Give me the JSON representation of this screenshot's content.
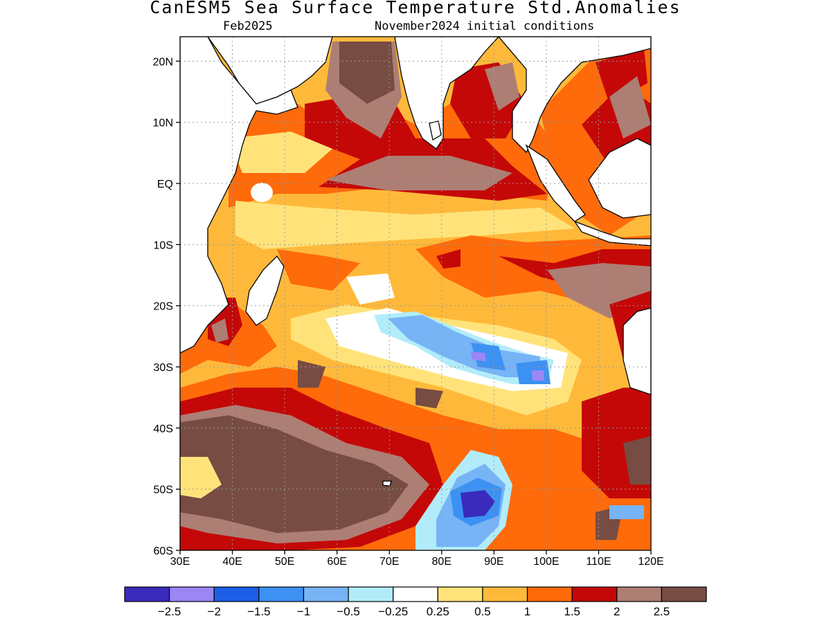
{
  "title": "CanESM5 Sea Surface Temperature Std.Anomalies",
  "subtitle_left": "Feb2025",
  "subtitle_right": "November2024 initial conditions",
  "map": {
    "lon_range": [
      30,
      120
    ],
    "lat_range": [
      -60,
      24
    ],
    "lat_ticks": [
      {
        "value": 20,
        "label": "20N"
      },
      {
        "value": 10,
        "label": "10N"
      },
      {
        "value": 0,
        "label": "EQ"
      },
      {
        "value": -10,
        "label": "10S"
      },
      {
        "value": -20,
        "label": "20S"
      },
      {
        "value": -30,
        "label": "30S"
      },
      {
        "value": -40,
        "label": "40S"
      },
      {
        "value": -50,
        "label": "50S"
      },
      {
        "value": -60,
        "label": "60S"
      }
    ],
    "lon_ticks": [
      {
        "value": 30,
        "label": "30E"
      },
      {
        "value": 40,
        "label": "40E"
      },
      {
        "value": 50,
        "label": "50E"
      },
      {
        "value": 60,
        "label": "60E"
      },
      {
        "value": 70,
        "label": "70E"
      },
      {
        "value": 80,
        "label": "80E"
      },
      {
        "value": 90,
        "label": "90E"
      },
      {
        "value": 100,
        "label": "100E"
      },
      {
        "value": 110,
        "label": "110E"
      },
      {
        "value": 120,
        "label": "120E"
      }
    ],
    "grid": true
  },
  "colorbar": {
    "colors": [
      "#3a2bbd",
      "#9b86f4",
      "#1c5fe6",
      "#3c91f2",
      "#76b4f6",
      "#b2ecfa",
      "#ffffff",
      "#ffe37a",
      "#ffb93a",
      "#ff6a0a",
      "#c40808",
      "#ad7e74",
      "#774c42"
    ],
    "labels": [
      "−2.5",
      "−2",
      "−1.5",
      "−1",
      "−0.5",
      "−0.25",
      "0.25",
      "0.5",
      "1",
      "1.5",
      "2",
      "2.5"
    ]
  }
}
